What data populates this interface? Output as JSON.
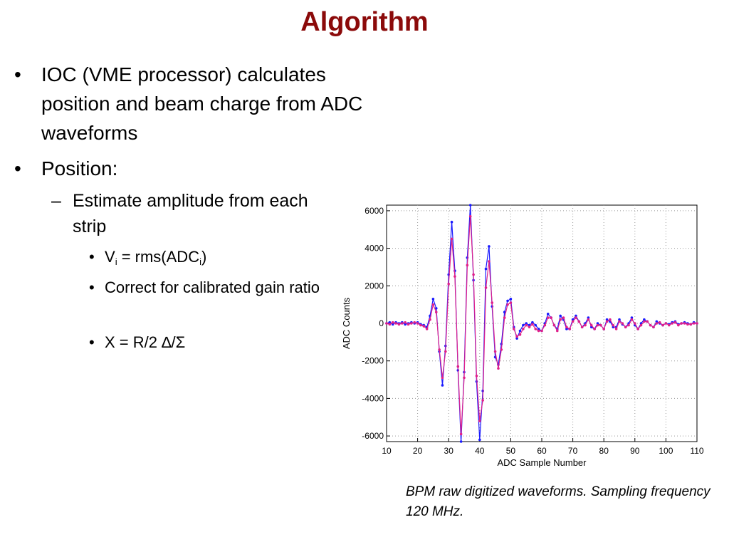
{
  "slide": {
    "title": "Algorithm",
    "bullets": [
      {
        "bullet": "•",
        "text": "IOC (VME processor) calculates position and beam charge from ADC waveforms"
      },
      {
        "bullet": "•",
        "text": "Position:"
      }
    ],
    "sub_bullets": [
      {
        "bullet": "–",
        "text": "Estimate amplitude from each strip"
      }
    ],
    "sub_sub_bullets": [
      {
        "bullet": "•",
        "v_prefix": "V",
        "v_sub": "i",
        "v_mid": " = rms(ADC",
        "v_sub2": "i",
        "v_suffix": ")"
      },
      {
        "bullet": "•",
        "text": "Correct for calibrated gain ratio"
      },
      {
        "bullet": "•",
        "text": "X = R/2  ∆/Σ"
      }
    ],
    "caption": "BPM raw digitized waveforms. Sampling frequency 120 MHz."
  },
  "chart_data": {
    "type": "line",
    "title": "",
    "xlabel": "ADC Sample Number",
    "ylabel": "ADC Counts",
    "xlim": [
      10,
      110
    ],
    "ylim": [
      -6300,
      6300
    ],
    "xticks": [
      10,
      20,
      30,
      40,
      50,
      60,
      70,
      80,
      90,
      100,
      110
    ],
    "yticks": [
      -6000,
      -4000,
      -2000,
      0,
      2000,
      4000,
      6000
    ],
    "grid": true,
    "series": [
      {
        "color": "#1a1aff",
        "x": [
          10,
          11,
          12,
          13,
          14,
          15,
          16,
          17,
          18,
          19,
          20,
          21,
          22,
          23,
          24,
          25,
          26,
          27,
          28,
          29,
          30,
          31,
          32,
          33,
          34,
          35,
          36,
          37,
          38,
          39,
          40,
          41,
          42,
          43,
          44,
          45,
          46,
          47,
          48,
          49,
          50,
          51,
          52,
          53,
          54,
          55,
          56,
          57,
          58,
          59,
          60,
          61,
          62,
          63,
          64,
          65,
          66,
          67,
          68,
          69,
          70,
          71,
          72,
          73,
          74,
          75,
          76,
          77,
          78,
          79,
          80,
          81,
          82,
          83,
          84,
          85,
          86,
          87,
          88,
          89,
          90,
          91,
          92,
          93,
          94,
          95,
          96,
          97,
          98,
          99,
          100,
          101,
          102,
          103,
          104,
          105,
          106,
          107,
          108,
          109,
          110
        ],
        "y": [
          0,
          50,
          -50,
          50,
          0,
          50,
          -50,
          0,
          50,
          0,
          50,
          -50,
          -100,
          -200,
          400,
          1300,
          800,
          -1500,
          -3300,
          -1200,
          2600,
          5400,
          2800,
          -2500,
          -6300,
          -2600,
          3500,
          6300,
          2300,
          -3100,
          -6200,
          -3600,
          2900,
          4100,
          900,
          -1800,
          -2200,
          -1100,
          600,
          1200,
          1300,
          -200,
          -800,
          -400,
          -100,
          0,
          -100,
          50,
          -100,
          -300,
          -400,
          0,
          500,
          300,
          -100,
          -300,
          400,
          200,
          -300,
          -300,
          200,
          400,
          100,
          -200,
          0,
          300,
          -200,
          -300,
          0,
          -100,
          -300,
          200,
          100,
          -200,
          -200,
          200,
          -50,
          -200,
          0,
          300,
          -100,
          -300,
          0,
          200,
          100,
          -100,
          -200,
          100,
          0,
          -100,
          0,
          -50,
          50,
          100,
          -50,
          0,
          50,
          0,
          -50,
          50,
          0
        ]
      },
      {
        "color": "#e0208a",
        "x": [
          10,
          11,
          12,
          13,
          14,
          15,
          16,
          17,
          18,
          19,
          20,
          21,
          22,
          23,
          24,
          25,
          26,
          27,
          28,
          29,
          30,
          31,
          32,
          33,
          34,
          35,
          36,
          37,
          38,
          39,
          40,
          41,
          42,
          43,
          44,
          45,
          46,
          47,
          48,
          49,
          50,
          51,
          52,
          53,
          54,
          55,
          56,
          57,
          58,
          59,
          60,
          61,
          62,
          63,
          64,
          65,
          66,
          67,
          68,
          69,
          70,
          71,
          72,
          73,
          74,
          75,
          76,
          77,
          78,
          79,
          80,
          81,
          82,
          83,
          84,
          85,
          86,
          87,
          88,
          89,
          90,
          91,
          92,
          93,
          94,
          95,
          96,
          97,
          98,
          99,
          100,
          101,
          102,
          103,
          104,
          105,
          106,
          107,
          108,
          109,
          110
        ],
        "y": [
          0,
          -50,
          50,
          0,
          -50,
          0,
          50,
          -50,
          0,
          50,
          0,
          -100,
          -150,
          -300,
          200,
          1000,
          600,
          -1400,
          -2900,
          -1500,
          2100,
          4500,
          2500,
          -2300,
          -5900,
          -2900,
          3100,
          5700,
          2600,
          -2800,
          -5200,
          -4100,
          1900,
          3300,
          1100,
          -1500,
          -2400,
          -1400,
          300,
          1000,
          1100,
          -300,
          -700,
          -600,
          -300,
          -100,
          -200,
          -50,
          -300,
          -400,
          -400,
          -100,
          300,
          300,
          -100,
          -400,
          200,
          300,
          -200,
          -300,
          100,
          300,
          100,
          -200,
          -100,
          200,
          -100,
          -300,
          -100,
          -100,
          -300,
          100,
          200,
          -100,
          -300,
          100,
          0,
          -200,
          -100,
          200,
          0,
          -300,
          -100,
          100,
          100,
          -100,
          -200,
          0,
          50,
          -100,
          0,
          -100,
          0,
          50,
          -100,
          0,
          0,
          -50,
          -50,
          0,
          0
        ]
      }
    ]
  }
}
